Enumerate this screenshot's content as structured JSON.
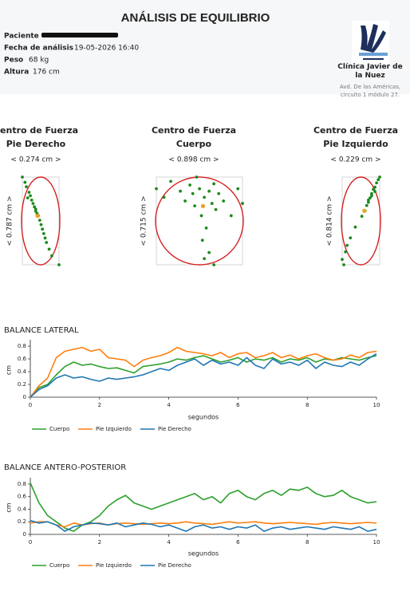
{
  "header": {
    "title": "ANÁLISIS DE EQUILIBRIO",
    "fields": [
      {
        "label": "Paciente"
      },
      {
        "label": "Fecha de análisis",
        "value": "19-05-2026 16:40"
      },
      {
        "label": "Peso",
        "value": "68 kg"
      },
      {
        "label": "Altura",
        "value": "176 cm"
      }
    ],
    "clinic": {
      "name": "Clínica Javier de la Nuez",
      "address": "Avd. De las Américas, circuito 1 módulo 27."
    }
  },
  "chart_data": [
    {
      "type": "scatter",
      "title": "Centro de Fuerza",
      "subtitle": "Pie Derecho",
      "width_label": "< 0.274 cm >",
      "height_label": "< 0.787 cm >",
      "color": "#1e8a1e",
      "x": [
        0.0,
        0.02,
        0.03,
        0.05,
        0.06,
        0.07,
        0.08,
        0.09,
        0.1,
        0.11,
        0.12,
        0.13,
        0.14,
        0.15,
        0.16,
        0.17,
        0.18,
        0.2,
        0.22,
        0.274,
        0.04,
        0.1
      ],
      "values": [
        0.787,
        0.74,
        0.7,
        0.65,
        0.62,
        0.58,
        0.55,
        0.52,
        0.5,
        0.46,
        0.44,
        0.4,
        0.36,
        0.32,
        0.28,
        0.24,
        0.2,
        0.14,
        0.08,
        0.0,
        0.6,
        0.48
      ]
    },
    {
      "type": "scatter",
      "title": "Centro de Fuerza",
      "subtitle": "Cuerpo",
      "width_label": "< 0.898 cm >",
      "height_label": "< 0.715 cm >",
      "color": "#1e8a1e",
      "x": [
        0.0,
        0.08,
        0.15,
        0.25,
        0.3,
        0.35,
        0.38,
        0.4,
        0.42,
        0.45,
        0.47,
        0.5,
        0.52,
        0.55,
        0.58,
        0.6,
        0.62,
        0.65,
        0.7,
        0.78,
        0.85,
        0.898,
        0.48,
        0.55,
        0.6,
        0.5
      ],
      "values": [
        0.62,
        0.55,
        0.68,
        0.6,
        0.52,
        0.65,
        0.58,
        0.48,
        0.715,
        0.62,
        0.4,
        0.55,
        0.3,
        0.6,
        0.5,
        0.66,
        0.45,
        0.58,
        0.52,
        0.4,
        0.62,
        0.5,
        0.2,
        0.1,
        0.0,
        0.05
      ]
    },
    {
      "type": "scatter",
      "title": "Centro de Fuerza",
      "subtitle": "Pie Izquierdo",
      "width_label": "< 0.229 cm >",
      "height_label": "< 0.814 cm >",
      "color": "#1e8a1e",
      "x": [
        0.0,
        0.01,
        0.02,
        0.03,
        0.05,
        0.08,
        0.12,
        0.14,
        0.15,
        0.16,
        0.17,
        0.18,
        0.19,
        0.2,
        0.21,
        0.22,
        0.229,
        0.16,
        0.18,
        0.2
      ],
      "values": [
        0.05,
        0.0,
        0.12,
        0.18,
        0.25,
        0.35,
        0.45,
        0.5,
        0.55,
        0.58,
        0.62,
        0.66,
        0.7,
        0.72,
        0.76,
        0.79,
        0.814,
        0.6,
        0.64,
        0.68
      ]
    },
    {
      "type": "line",
      "title": "BALANCE LATERAL",
      "x_label": "segundos",
      "y_label": "cm",
      "x": [
        0,
        0.25,
        0.5,
        0.75,
        1,
        1.25,
        1.5,
        1.75,
        2,
        2.25,
        2.5,
        2.75,
        3,
        3.25,
        3.5,
        3.75,
        4,
        4.25,
        4.5,
        4.75,
        5,
        5.25,
        5.5,
        5.75,
        6,
        6.25,
        6.5,
        6.75,
        7,
        7.25,
        7.5,
        7.75,
        8,
        8.25,
        8.5,
        8.75,
        9,
        9.25,
        9.5,
        9.75,
        10
      ],
      "xlim": [
        0,
        10
      ],
      "xticks": [
        0,
        2,
        4,
        6,
        8,
        10
      ],
      "ylim": [
        0,
        0.85
      ],
      "yticks": [
        0,
        0.2,
        0.4,
        0.6,
        0.8
      ],
      "series": [
        {
          "name": "Cuerpo",
          "color": "#2ca02c",
          "values": [
            0,
            0.15,
            0.2,
            0.35,
            0.48,
            0.55,
            0.5,
            0.52,
            0.48,
            0.45,
            0.46,
            0.42,
            0.38,
            0.48,
            0.5,
            0.52,
            0.55,
            0.6,
            0.58,
            0.62,
            0.65,
            0.6,
            0.55,
            0.58,
            0.62,
            0.55,
            0.6,
            0.58,
            0.62,
            0.55,
            0.6,
            0.58,
            0.62,
            0.55,
            0.6,
            0.58,
            0.62,
            0.6,
            0.58,
            0.62,
            0.65
          ]
        },
        {
          "name": "Pie Izquierdo",
          "color": "#ff7f0e",
          "values": [
            0,
            0.18,
            0.3,
            0.62,
            0.72,
            0.75,
            0.78,
            0.72,
            0.75,
            0.62,
            0.6,
            0.58,
            0.48,
            0.58,
            0.62,
            0.65,
            0.7,
            0.78,
            0.72,
            0.7,
            0.68,
            0.65,
            0.7,
            0.62,
            0.68,
            0.7,
            0.62,
            0.65,
            0.7,
            0.62,
            0.66,
            0.6,
            0.65,
            0.68,
            0.62,
            0.58,
            0.6,
            0.66,
            0.62,
            0.7,
            0.72
          ]
        },
        {
          "name": "Pie Derecho",
          "color": "#1f77b4",
          "values": [
            0,
            0.12,
            0.18,
            0.3,
            0.35,
            0.3,
            0.32,
            0.28,
            0.25,
            0.3,
            0.28,
            0.3,
            0.32,
            0.35,
            0.4,
            0.45,
            0.42,
            0.5,
            0.55,
            0.6,
            0.5,
            0.58,
            0.52,
            0.55,
            0.5,
            0.62,
            0.5,
            0.45,
            0.6,
            0.52,
            0.55,
            0.5,
            0.58,
            0.45,
            0.55,
            0.5,
            0.48,
            0.55,
            0.5,
            0.6,
            0.68
          ]
        }
      ]
    },
    {
      "type": "line",
      "title": "BALANCE ANTERO-POSTERIOR",
      "x_label": "segundos",
      "y_label": "cm",
      "x": [
        0,
        0.25,
        0.5,
        0.75,
        1,
        1.25,
        1.5,
        1.75,
        2,
        2.25,
        2.5,
        2.75,
        3,
        3.25,
        3.5,
        3.75,
        4,
        4.25,
        4.5,
        4.75,
        5,
        5.25,
        5.5,
        5.75,
        6,
        6.25,
        6.5,
        6.75,
        7,
        7.25,
        7.5,
        7.75,
        8,
        8.25,
        8.5,
        8.75,
        9,
        9.25,
        9.5,
        9.75,
        10
      ],
      "xlim": [
        0,
        10
      ],
      "xticks": [
        0,
        2,
        4,
        6,
        8,
        10
      ],
      "ylim": [
        0,
        0.85
      ],
      "yticks": [
        0,
        0.2,
        0.4,
        0.6,
        0.8
      ],
      "series": [
        {
          "name": "Cuerpo",
          "color": "#2ca02c",
          "values": [
            0.82,
            0.5,
            0.3,
            0.2,
            0.1,
            0.05,
            0.15,
            0.2,
            0.3,
            0.45,
            0.55,
            0.62,
            0.5,
            0.45,
            0.4,
            0.45,
            0.5,
            0.55,
            0.6,
            0.65,
            0.55,
            0.6,
            0.5,
            0.65,
            0.7,
            0.6,
            0.55,
            0.65,
            0.7,
            0.62,
            0.72,
            0.7,
            0.75,
            0.65,
            0.6,
            0.62,
            0.7,
            0.6,
            0.55,
            0.5,
            0.52
          ]
        },
        {
          "name": "Pie Izquierdo",
          "color": "#ff7f0e",
          "values": [
            0.18,
            0.2,
            0.2,
            0.15,
            0.12,
            0.18,
            0.15,
            0.17,
            0.18,
            0.15,
            0.17,
            0.18,
            0.17,
            0.16,
            0.17,
            0.18,
            0.17,
            0.18,
            0.2,
            0.18,
            0.17,
            0.16,
            0.18,
            0.2,
            0.18,
            0.19,
            0.2,
            0.18,
            0.17,
            0.18,
            0.19,
            0.18,
            0.17,
            0.16,
            0.18,
            0.19,
            0.18,
            0.17,
            0.18,
            0.19,
            0.18
          ]
        },
        {
          "name": "Pie Derecho",
          "color": "#1f77b4",
          "values": [
            0.22,
            0.18,
            0.2,
            0.15,
            0.05,
            0.12,
            0.15,
            0.18,
            0.17,
            0.15,
            0.18,
            0.12,
            0.15,
            0.18,
            0.16,
            0.12,
            0.15,
            0.1,
            0.05,
            0.12,
            0.15,
            0.1,
            0.12,
            0.08,
            0.12,
            0.1,
            0.15,
            0.05,
            0.1,
            0.12,
            0.08,
            0.1,
            0.12,
            0.1,
            0.08,
            0.12,
            0.1,
            0.08,
            0.12,
            0.05,
            0.08
          ]
        }
      ]
    }
  ]
}
